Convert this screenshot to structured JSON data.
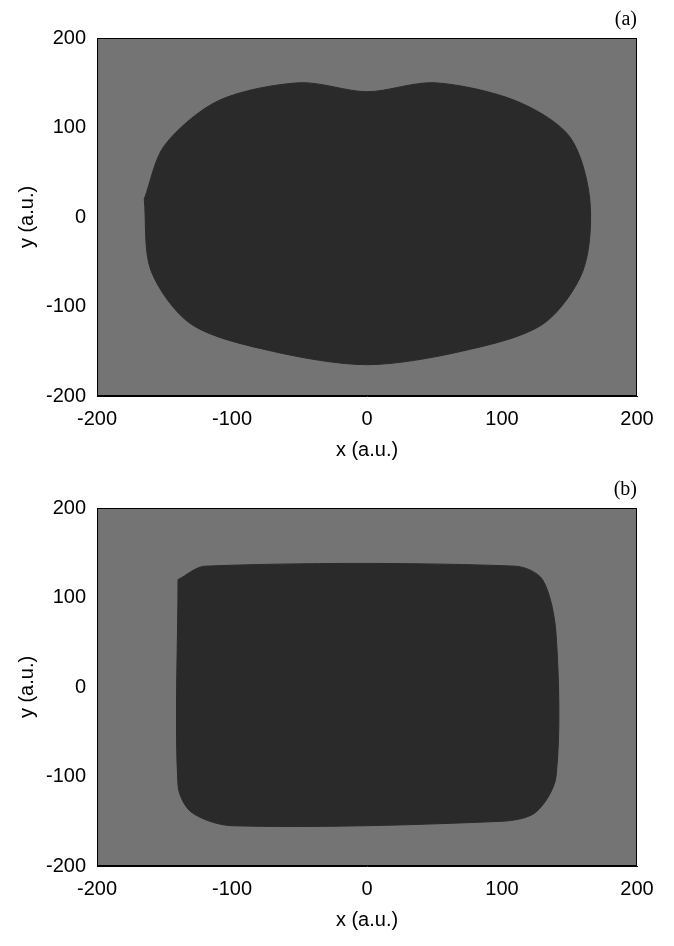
{
  "chart_data": [
    {
      "type": "area",
      "title": "(a)",
      "x_label": "x (a.u.)",
      "y_label": "y (a.u.)",
      "xlim": [
        -200,
        200
      ],
      "ylim": [
        -200,
        200
      ],
      "xticks": [
        -200,
        -100,
        0,
        100,
        200
      ],
      "yticks": [
        -200,
        -100,
        0,
        100,
        200
      ],
      "grid": false,
      "series": [
        {
          "color": "#2a2a2a",
          "x": [
            -165,
            -150,
            -110,
            -50,
            0,
            50,
            110,
            150,
            165,
            160,
            130,
            70,
            0,
            -70,
            -130,
            -160,
            -165
          ],
          "y": [
            20,
            80,
            130,
            150,
            140,
            150,
            130,
            90,
            20,
            -60,
            -120,
            -150,
            -165,
            -150,
            -120,
            -60,
            20
          ]
        }
      ]
    },
    {
      "type": "area",
      "title": "(b)",
      "x_label": "x (a.u.)",
      "y_label": "y (a.u.)",
      "xlim": [
        -200,
        200
      ],
      "ylim": [
        -200,
        200
      ],
      "xticks": [
        -200,
        -100,
        0,
        100,
        200
      ],
      "yticks": [
        -200,
        -100,
        0,
        100,
        200
      ],
      "grid": false,
      "series": [
        {
          "color": "#2a2a2a",
          "x": [
            -140,
            -120,
            110,
            130,
            140,
            140,
            125,
            100,
            -100,
            -130,
            -140,
            -140
          ],
          "y": [
            120,
            135,
            135,
            120,
            60,
            -100,
            -140,
            -150,
            -155,
            -140,
            -110,
            120
          ]
        }
      ]
    }
  ]
}
